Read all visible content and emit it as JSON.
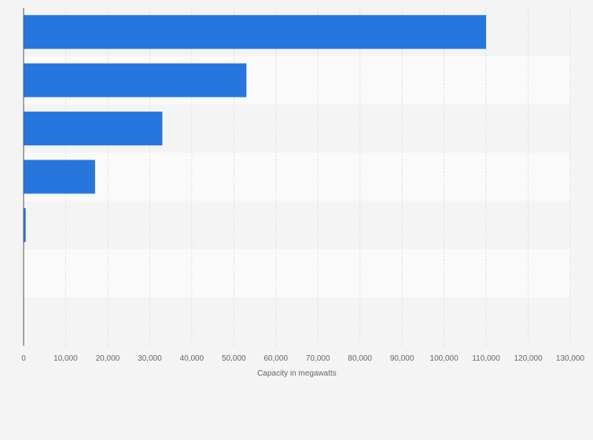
{
  "chart_data": {
    "type": "bar",
    "orientation": "horizontal",
    "categories": [
      "",
      "",
      "",
      "",
      "",
      "",
      ""
    ],
    "values": [
      110000,
      53000,
      33000,
      17000,
      500,
      0,
      0
    ],
    "title": "",
    "xlabel": "Capacity in megawatts",
    "ylabel": "",
    "xlim": [
      0,
      130000
    ],
    "xticks": [
      0,
      10000,
      20000,
      30000,
      40000,
      50000,
      60000,
      70000,
      80000,
      90000,
      100000,
      110000,
      120000,
      130000
    ],
    "xtick_labels": [
      "0",
      "10,000",
      "20,000",
      "30,000",
      "40,000",
      "50,000",
      "60,000",
      "70,000",
      "80,000",
      "90,000",
      "100,000",
      "110,000",
      "120,000",
      "130,000"
    ],
    "grid": true,
    "legend": "none"
  },
  "colors": {
    "bar": "#2776dd",
    "band_dark": "#f4f4f4",
    "band_light": "#fafafa",
    "grid": "#dcdcdc",
    "axis": "#555555",
    "text": "#666666"
  }
}
